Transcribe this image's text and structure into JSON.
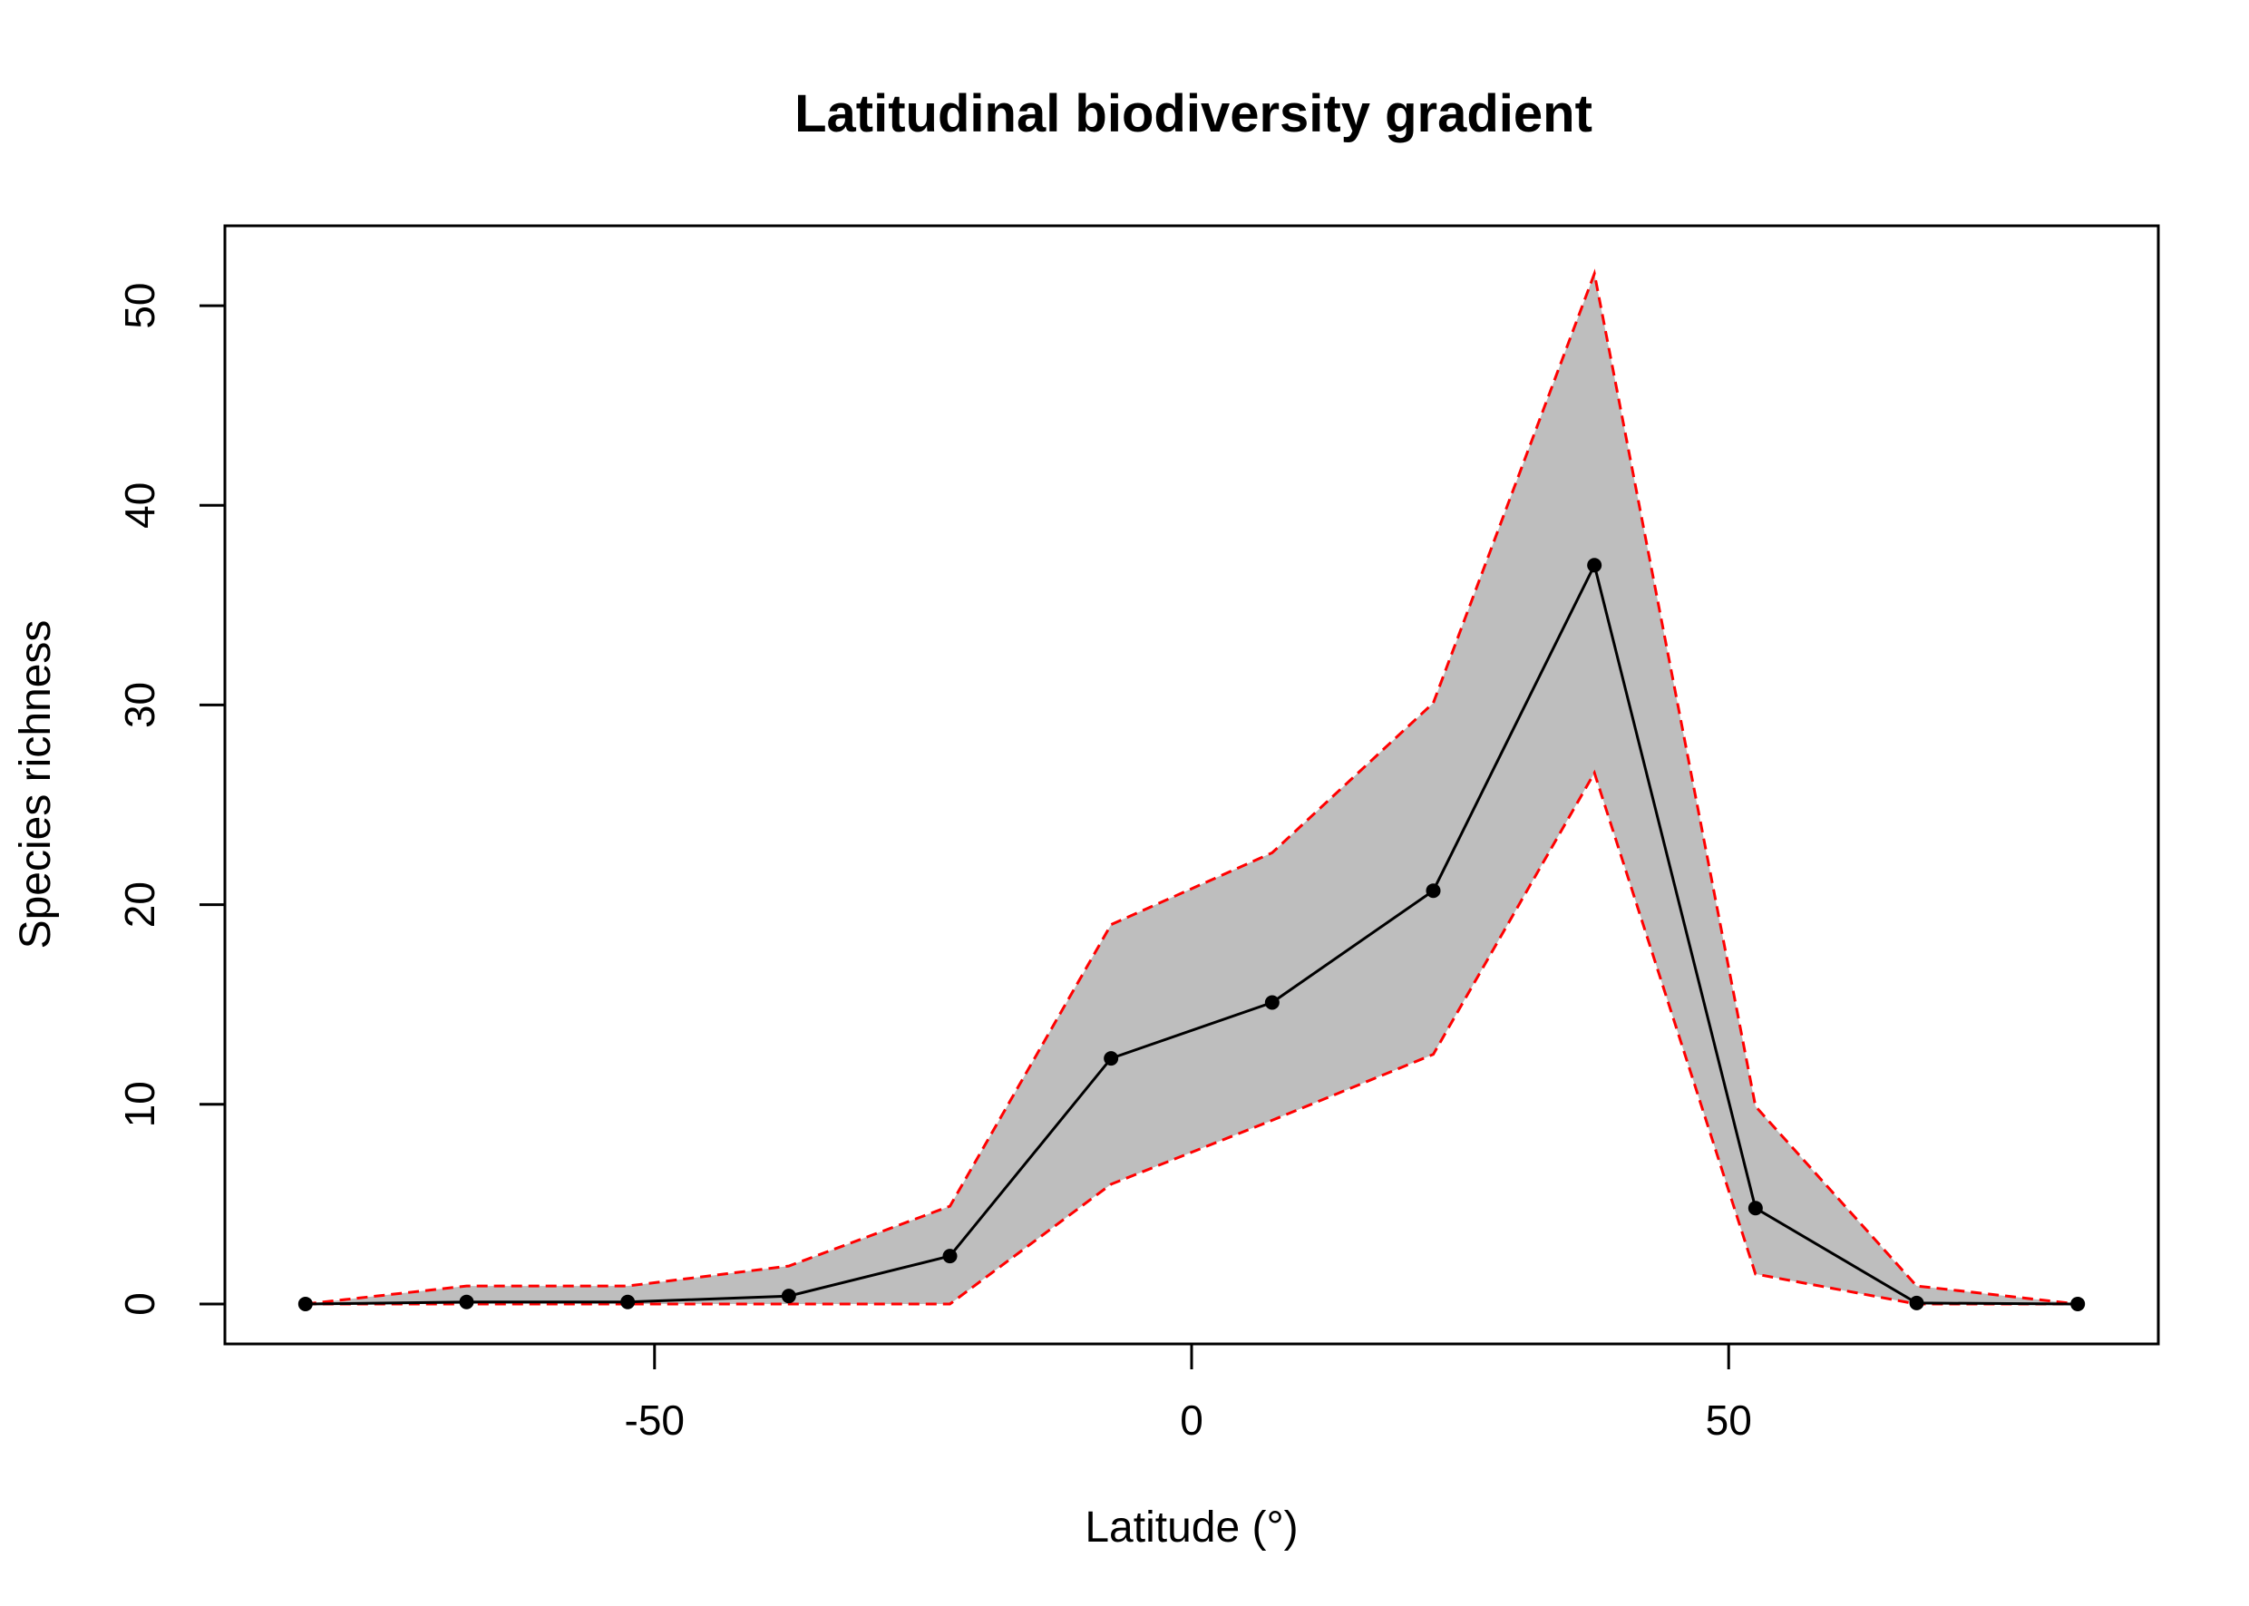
{
  "chart_data": {
    "type": "line",
    "title": "Latitudinal biodiversity gradient",
    "xlabel": "Latitude (°)",
    "ylabel": "Species richness",
    "xlim": [
      -90,
      90
    ],
    "ylim": [
      -2,
      54
    ],
    "x_ticks": [
      -50,
      0,
      50
    ],
    "y_ticks": [
      0,
      10,
      20,
      30,
      40,
      50
    ],
    "grid": false,
    "legend": "none",
    "colors": {
      "band_fill": "#bebebe",
      "bounds": "#ff0000",
      "mean_line": "#000000",
      "points": "#000000"
    },
    "x": [
      -82.5,
      -67.5,
      -52.5,
      -37.5,
      -22.5,
      -7.5,
      7.5,
      22.5,
      37.5,
      52.5,
      67.5,
      82.5
    ],
    "series": [
      {
        "role": "mean",
        "values": [
          0,
          0.1,
          0.1,
          0.4,
          2.4,
          12.3,
          15.1,
          20.7,
          37.0,
          4.8,
          0.05,
          0
        ]
      },
      {
        "role": "upper",
        "values": [
          0,
          0.9,
          0.9,
          1.9,
          4.9,
          19.0,
          22.6,
          30.1,
          51.6,
          9.9,
          0.9,
          0
        ]
      },
      {
        "role": "lower",
        "values": [
          0,
          0,
          0,
          0,
          0,
          6.0,
          9.2,
          12.5,
          26.6,
          1.5,
          0,
          0
        ]
      }
    ]
  }
}
